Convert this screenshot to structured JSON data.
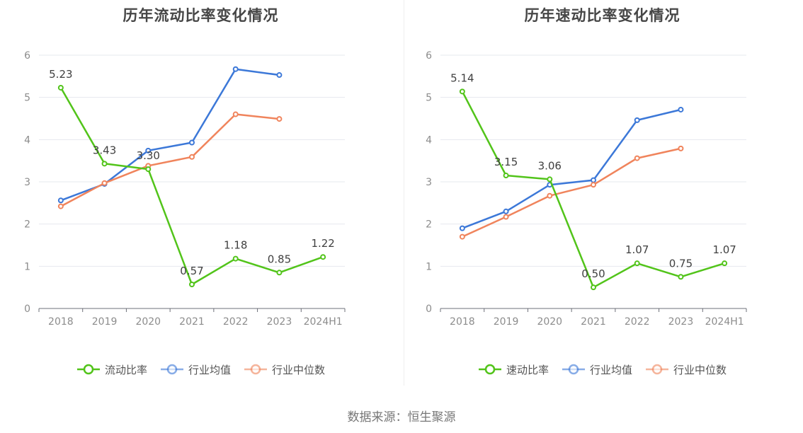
{
  "source": "数据来源：恒生聚源",
  "charts": [
    {
      "title": "历年流动比率变化情况",
      "legend": [
        "流动比率",
        "行业均值",
        "行业中位数"
      ]
    },
    {
      "title": "历年速动比率变化情况",
      "legend": [
        "速动比率",
        "行业均值",
        "行业中位数"
      ]
    }
  ],
  "colors": {
    "green": "#52c41a",
    "blue": "#3c78d8",
    "orange": "#f0845c"
  },
  "chart_data": [
    {
      "type": "line",
      "title": "历年流动比率变化情况",
      "categories": [
        "2018",
        "2019",
        "2020",
        "2021",
        "2022",
        "2023",
        "2024H1"
      ],
      "ylim": [
        0,
        6
      ],
      "yticks": [
        0,
        1,
        2,
        3,
        4,
        5,
        6
      ],
      "grid": true,
      "legend_position": "bottom",
      "series": [
        {
          "name": "流动比率",
          "color": "#52c41a",
          "values": [
            5.23,
            3.43,
            3.3,
            0.57,
            1.18,
            0.85,
            1.22
          ],
          "labels": [
            "5.23",
            "3.43",
            "3.30",
            "0.57",
            "1.18",
            "0.85",
            "1.22"
          ]
        },
        {
          "name": "行业均值",
          "color": "#3c78d8",
          "values": [
            2.56,
            2.95,
            3.74,
            3.93,
            5.67,
            5.53,
            null
          ]
        },
        {
          "name": "行业中位数",
          "color": "#f0845c",
          "values": [
            2.42,
            2.97,
            3.38,
            3.59,
            4.6,
            4.49,
            null
          ]
        }
      ]
    },
    {
      "type": "line",
      "title": "历年速动比率变化情况",
      "categories": [
        "2018",
        "2019",
        "2020",
        "2021",
        "2022",
        "2023",
        "2024H1"
      ],
      "ylim": [
        0,
        6
      ],
      "yticks": [
        0,
        1,
        2,
        3,
        4,
        5,
        6
      ],
      "grid": true,
      "legend_position": "bottom",
      "series": [
        {
          "name": "速动比率",
          "color": "#52c41a",
          "values": [
            5.14,
            3.15,
            3.06,
            0.5,
            1.07,
            0.75,
            1.07
          ],
          "labels": [
            "5.14",
            "3.15",
            "3.06",
            "0.50",
            "1.07",
            "0.75",
            "1.07"
          ]
        },
        {
          "name": "行业均值",
          "color": "#3c78d8",
          "values": [
            1.9,
            2.3,
            2.93,
            3.04,
            4.46,
            4.71,
            null
          ]
        },
        {
          "name": "行业中位数",
          "color": "#f0845c",
          "values": [
            1.7,
            2.17,
            2.67,
            2.93,
            3.56,
            3.79,
            null
          ]
        }
      ]
    }
  ]
}
